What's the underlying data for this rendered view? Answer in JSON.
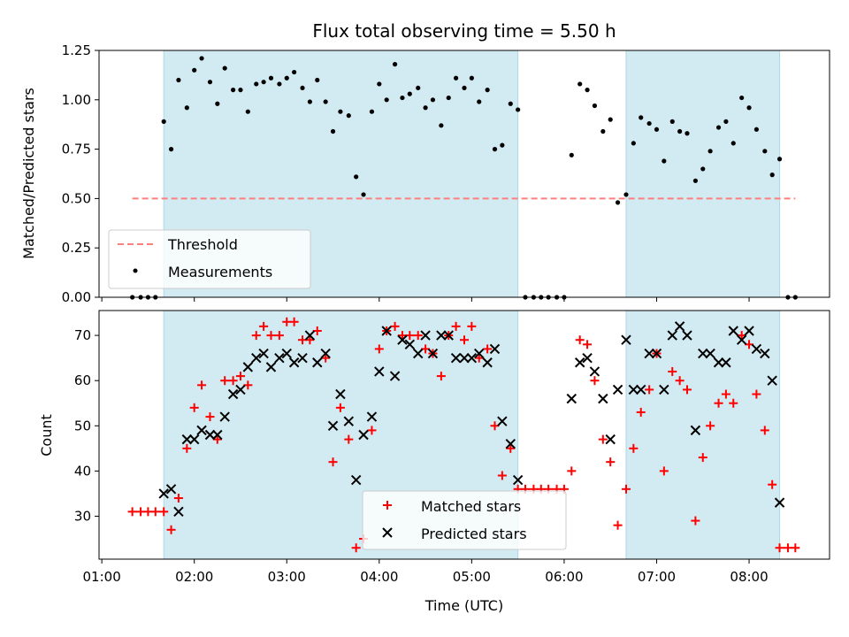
{
  "chart_data": {
    "type": "scatter",
    "title": "Flux total observing time = 5.50 h",
    "xlabel": "Time (UTC)",
    "x_ticks": [
      "01:00",
      "02:00",
      "03:00",
      "04:00",
      "05:00",
      "06:00",
      "07:00",
      "08:00"
    ],
    "x_tick_hours": [
      1,
      2,
      3,
      4,
      5,
      6,
      7,
      8
    ],
    "xlim": [
      0.97,
      8.87
    ],
    "shaded_intervals": [
      [
        1.67,
        5.5
      ],
      [
        6.67,
        8.33
      ]
    ],
    "shade_color": "#add8e6",
    "top": {
      "ylabel": "Matched/Predicted stars",
      "ylim": [
        0,
        1.25
      ],
      "y_ticks": [
        "0.00",
        "0.25",
        "0.50",
        "0.75",
        "1.00",
        "1.25"
      ],
      "y_tick_values": [
        0,
        0.25,
        0.5,
        0.75,
        1.0,
        1.25
      ],
      "threshold": {
        "name": "Threshold",
        "value": 0.5,
        "x_range": [
          1.33,
          8.5
        ],
        "color": "#ff7f7f"
      },
      "measurements": {
        "name": "Measurements",
        "color": "#000000",
        "points": [
          [
            1.33,
            0
          ],
          [
            1.42,
            0
          ],
          [
            1.5,
            0
          ],
          [
            1.58,
            0
          ],
          [
            1.67,
            0.89
          ],
          [
            1.75,
            0.75
          ],
          [
            1.83,
            1.1
          ],
          [
            1.92,
            0.96
          ],
          [
            2.0,
            1.15
          ],
          [
            2.08,
            1.21
          ],
          [
            2.17,
            1.09
          ],
          [
            2.25,
            0.98
          ],
          [
            2.33,
            1.16
          ],
          [
            2.42,
            1.05
          ],
          [
            2.5,
            1.05
          ],
          [
            2.58,
            0.94
          ],
          [
            2.67,
            1.08
          ],
          [
            2.75,
            1.09
          ],
          [
            2.83,
            1.11
          ],
          [
            2.92,
            1.08
          ],
          [
            3.0,
            1.11
          ],
          [
            3.08,
            1.14
          ],
          [
            3.17,
            1.06
          ],
          [
            3.25,
            0.99
          ],
          [
            3.33,
            1.1
          ],
          [
            3.42,
            0.99
          ],
          [
            3.5,
            0.84
          ],
          [
            3.58,
            0.94
          ],
          [
            3.67,
            0.92
          ],
          [
            3.75,
            0.61
          ],
          [
            3.83,
            0.52
          ],
          [
            3.92,
            0.94
          ],
          [
            4.0,
            1.08
          ],
          [
            4.08,
            1.0
          ],
          [
            4.17,
            1.18
          ],
          [
            4.25,
            1.01
          ],
          [
            4.33,
            1.03
          ],
          [
            4.42,
            1.06
          ],
          [
            4.5,
            0.96
          ],
          [
            4.58,
            1.0
          ],
          [
            4.67,
            0.87
          ],
          [
            4.75,
            1.01
          ],
          [
            4.83,
            1.11
          ],
          [
            4.92,
            1.06
          ],
          [
            5.0,
            1.11
          ],
          [
            5.08,
            0.99
          ],
          [
            5.17,
            1.05
          ],
          [
            5.25,
            0.75
          ],
          [
            5.33,
            0.77
          ],
          [
            5.42,
            0.98
          ],
          [
            5.5,
            0.95
          ],
          [
            5.58,
            0
          ],
          [
            5.67,
            0
          ],
          [
            5.75,
            0
          ],
          [
            5.83,
            0
          ],
          [
            5.92,
            0
          ],
          [
            6.0,
            0
          ],
          [
            6.08,
            0.72
          ],
          [
            6.17,
            1.08
          ],
          [
            6.25,
            1.05
          ],
          [
            6.33,
            0.97
          ],
          [
            6.42,
            0.84
          ],
          [
            6.5,
            0.9
          ],
          [
            6.58,
            0.48
          ],
          [
            6.67,
            0.52
          ],
          [
            6.75,
            0.78
          ],
          [
            6.83,
            0.91
          ],
          [
            6.92,
            0.88
          ],
          [
            7.0,
            0.85
          ],
          [
            7.08,
            0.69
          ],
          [
            7.17,
            0.89
          ],
          [
            7.25,
            0.84
          ],
          [
            7.33,
            0.83
          ],
          [
            7.42,
            0.59
          ],
          [
            7.5,
            0.65
          ],
          [
            7.58,
            0.74
          ],
          [
            7.67,
            0.86
          ],
          [
            7.75,
            0.89
          ],
          [
            7.83,
            0.78
          ],
          [
            7.92,
            1.01
          ],
          [
            8.0,
            0.96
          ],
          [
            8.08,
            0.85
          ],
          [
            8.17,
            0.74
          ],
          [
            8.25,
            0.62
          ],
          [
            8.33,
            0.7
          ],
          [
            8.42,
            0
          ],
          [
            8.5,
            0
          ]
        ]
      }
    },
    "bottom": {
      "ylabel": "Count",
      "ylim": [
        20.5,
        75.5
      ],
      "y_ticks": [
        "30",
        "40",
        "50",
        "60",
        "70"
      ],
      "y_tick_values": [
        30,
        40,
        50,
        60,
        70
      ],
      "matched": {
        "name": "Matched stars",
        "color": "#ff0000",
        "points": [
          [
            1.33,
            31
          ],
          [
            1.42,
            31
          ],
          [
            1.5,
            31
          ],
          [
            1.58,
            31
          ],
          [
            1.67,
            31
          ],
          [
            1.75,
            27
          ],
          [
            1.83,
            34
          ],
          [
            1.92,
            45
          ],
          [
            2.0,
            54
          ],
          [
            2.08,
            59
          ],
          [
            2.17,
            52
          ],
          [
            2.25,
            47
          ],
          [
            2.33,
            60
          ],
          [
            2.42,
            60
          ],
          [
            2.5,
            61
          ],
          [
            2.58,
            59
          ],
          [
            2.67,
            70
          ],
          [
            2.75,
            72
          ],
          [
            2.83,
            70
          ],
          [
            2.92,
            70
          ],
          [
            3.0,
            73
          ],
          [
            3.08,
            73
          ],
          [
            3.17,
            69
          ],
          [
            3.25,
            69
          ],
          [
            3.33,
            71
          ],
          [
            3.42,
            65
          ],
          [
            3.5,
            42
          ],
          [
            3.58,
            54
          ],
          [
            3.67,
            47
          ],
          [
            3.75,
            23
          ],
          [
            3.83,
            25
          ],
          [
            3.92,
            49
          ],
          [
            4.0,
            67
          ],
          [
            4.08,
            71
          ],
          [
            4.17,
            72
          ],
          [
            4.25,
            70
          ],
          [
            4.33,
            70
          ],
          [
            4.42,
            70
          ],
          [
            4.5,
            67
          ],
          [
            4.58,
            66
          ],
          [
            4.67,
            61
          ],
          [
            4.75,
            70
          ],
          [
            4.83,
            72
          ],
          [
            4.92,
            69
          ],
          [
            5.0,
            72
          ],
          [
            5.08,
            65
          ],
          [
            5.17,
            67
          ],
          [
            5.25,
            50
          ],
          [
            5.33,
            39
          ],
          [
            5.42,
            45
          ],
          [
            5.5,
            36
          ],
          [
            5.58,
            36
          ],
          [
            5.67,
            36
          ],
          [
            5.75,
            36
          ],
          [
            5.83,
            36
          ],
          [
            5.92,
            36
          ],
          [
            6.0,
            36
          ],
          [
            6.08,
            40
          ],
          [
            6.17,
            69
          ],
          [
            6.25,
            68
          ],
          [
            6.33,
            60
          ],
          [
            6.42,
            47
          ],
          [
            6.5,
            42
          ],
          [
            6.58,
            28
          ],
          [
            6.67,
            36
          ],
          [
            6.75,
            45
          ],
          [
            6.83,
            53
          ],
          [
            6.92,
            58
          ],
          [
            7.0,
            66
          ],
          [
            7.08,
            40
          ],
          [
            7.17,
            62
          ],
          [
            7.25,
            60
          ],
          [
            7.33,
            58
          ],
          [
            7.42,
            29
          ],
          [
            7.5,
            43
          ],
          [
            7.58,
            50
          ],
          [
            7.67,
            55
          ],
          [
            7.75,
            57
          ],
          [
            7.83,
            55
          ],
          [
            7.92,
            70
          ],
          [
            8.0,
            68
          ],
          [
            8.08,
            57
          ],
          [
            8.17,
            49
          ],
          [
            8.25,
            37
          ],
          [
            8.33,
            23
          ],
          [
            8.42,
            23
          ],
          [
            8.5,
            23
          ]
        ]
      },
      "predicted": {
        "name": "Predicted stars",
        "color": "#000000",
        "points": [
          [
            1.67,
            35
          ],
          [
            1.75,
            36
          ],
          [
            1.83,
            31
          ],
          [
            1.92,
            47
          ],
          [
            2.0,
            47
          ],
          [
            2.08,
            49
          ],
          [
            2.17,
            48
          ],
          [
            2.25,
            48
          ],
          [
            2.33,
            52
          ],
          [
            2.42,
            57
          ],
          [
            2.5,
            58
          ],
          [
            2.58,
            63
          ],
          [
            2.67,
            65
          ],
          [
            2.75,
            66
          ],
          [
            2.83,
            63
          ],
          [
            2.92,
            65
          ],
          [
            3.0,
            66
          ],
          [
            3.08,
            64
          ],
          [
            3.17,
            65
          ],
          [
            3.25,
            70
          ],
          [
            3.33,
            64
          ],
          [
            3.42,
            66
          ],
          [
            3.5,
            50
          ],
          [
            3.58,
            57
          ],
          [
            3.67,
            51
          ],
          [
            3.75,
            38
          ],
          [
            3.83,
            48
          ],
          [
            3.92,
            52
          ],
          [
            4.0,
            62
          ],
          [
            4.08,
            71
          ],
          [
            4.17,
            61
          ],
          [
            4.25,
            69
          ],
          [
            4.33,
            68
          ],
          [
            4.42,
            66
          ],
          [
            4.5,
            70
          ],
          [
            4.58,
            66
          ],
          [
            4.67,
            70
          ],
          [
            4.75,
            70
          ],
          [
            4.83,
            65
          ],
          [
            4.92,
            65
          ],
          [
            5.0,
            65
          ],
          [
            5.08,
            66
          ],
          [
            5.17,
            64
          ],
          [
            5.25,
            67
          ],
          [
            5.33,
            51
          ],
          [
            5.42,
            46
          ],
          [
            5.5,
            38
          ],
          [
            6.08,
            56
          ],
          [
            6.17,
            64
          ],
          [
            6.25,
            65
          ],
          [
            6.33,
            62
          ],
          [
            6.42,
            56
          ],
          [
            6.5,
            47
          ],
          [
            6.58,
            58
          ],
          [
            6.67,
            69
          ],
          [
            6.75,
            58
          ],
          [
            6.83,
            58
          ],
          [
            6.92,
            66
          ],
          [
            7.0,
            66
          ],
          [
            7.08,
            58
          ],
          [
            7.17,
            70
          ],
          [
            7.25,
            72
          ],
          [
            7.33,
            70
          ],
          [
            7.42,
            49
          ],
          [
            7.5,
            66
          ],
          [
            7.58,
            66
          ],
          [
            7.67,
            64
          ],
          [
            7.75,
            64
          ],
          [
            7.83,
            71
          ],
          [
            7.92,
            69
          ],
          [
            8.0,
            71
          ],
          [
            8.08,
            67
          ],
          [
            8.17,
            66
          ],
          [
            8.25,
            60
          ],
          [
            8.33,
            33
          ]
        ]
      }
    }
  }
}
